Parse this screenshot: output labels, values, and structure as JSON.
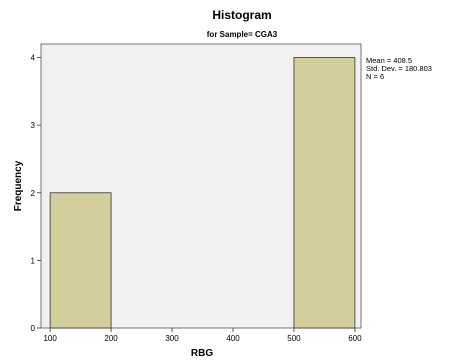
{
  "chart_data": {
    "type": "bar",
    "title": "Histogram",
    "subtitle": "for Sample= CGA3",
    "xlabel": "RBG",
    "ylabel": "Frequency",
    "xlim": [
      85,
      610
    ],
    "ylim": [
      0,
      4.2
    ],
    "x_ticks": [
      100,
      200,
      300,
      400,
      500,
      600
    ],
    "y_ticks": [
      0,
      1,
      2,
      3,
      4
    ],
    "bins": [
      {
        "start": 100,
        "end": 200,
        "count": 2
      },
      {
        "start": 200,
        "end": 300,
        "count": 0
      },
      {
        "start": 300,
        "end": 400,
        "count": 0
      },
      {
        "start": 400,
        "end": 500,
        "count": 0
      },
      {
        "start": 500,
        "end": 600,
        "count": 4
      }
    ],
    "stats": [
      "Mean = 408.5",
      "Std. Dev. = 180.803",
      "N = 6"
    ],
    "bar_color": "#d3cf9c",
    "bar_edge_color": "#333333",
    "plot_background": "#f1f1f1",
    "grid": false
  }
}
